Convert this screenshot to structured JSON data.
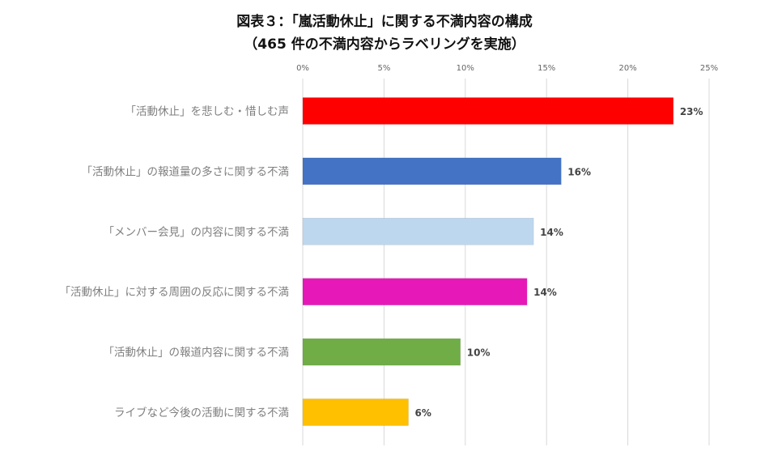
{
  "chart_data": {
    "type": "bar",
    "orientation": "horizontal",
    "title": "図表３：「嵐活動休止」に関する不満内容の構成",
    "subtitle": "（465 件の不満内容からラベリングを実施）",
    "categories": [
      "「活動休止」を悲しむ・惜しむ声",
      "「活動休止」の報道量の多さに関する不満",
      "「メンバー会見」の内容に関する不満",
      "「活動休止」に対する周囲の反応に関する不満",
      "「活動休止」の報道内容に関する不満",
      "ライブなど今後の活動に関する不満"
    ],
    "values": [
      22.8,
      15.9,
      14.2,
      13.8,
      9.7,
      6.5
    ],
    "data_labels": [
      "23%",
      "16%",
      "14%",
      "14%",
      "10%",
      "6%"
    ],
    "colors": [
      "#ff0000",
      "#4472c4",
      "#bdd7ee",
      "#e619b8",
      "#70ad47",
      "#ffc000"
    ],
    "xlim": [
      0,
      25
    ],
    "xticks": [
      0,
      5,
      10,
      15,
      20,
      25
    ],
    "xtick_labels": [
      "0%",
      "5%",
      "10%",
      "15%",
      "20%",
      "25%"
    ],
    "xaxis_position": "top",
    "grid": true,
    "xlabel": "",
    "ylabel": ""
  }
}
